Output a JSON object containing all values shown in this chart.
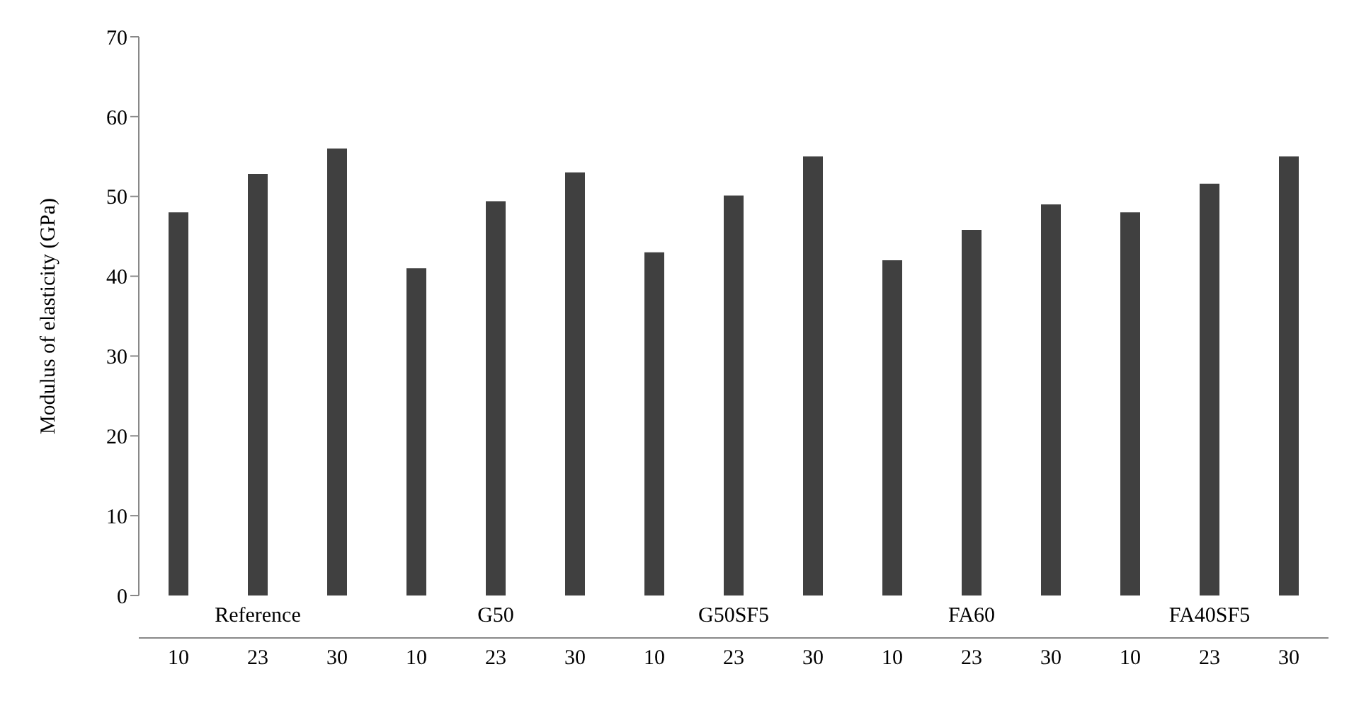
{
  "chart_data": {
    "type": "bar",
    "ylabel": "Modulus of elasticity (GPa)",
    "categories": [
      "10",
      "23",
      "30",
      "10",
      "23",
      "30",
      "10",
      "23",
      "30",
      "10",
      "23",
      "30",
      "10",
      "23",
      "30"
    ],
    "values": [
      48,
      52.8,
      56,
      41,
      49.4,
      53,
      43,
      50.1,
      55,
      42,
      45.8,
      49,
      48,
      51.6,
      55
    ],
    "color": "#404040",
    "annotations": [
      "Reference",
      "G50",
      "G50SF5",
      "FA60",
      "FA40SF5"
    ],
    "ylim": [
      0,
      70
    ],
    "yticks": [
      0,
      10,
      20,
      30,
      40,
      50,
      60,
      70
    ],
    "grid": false,
    "legend": false
  }
}
